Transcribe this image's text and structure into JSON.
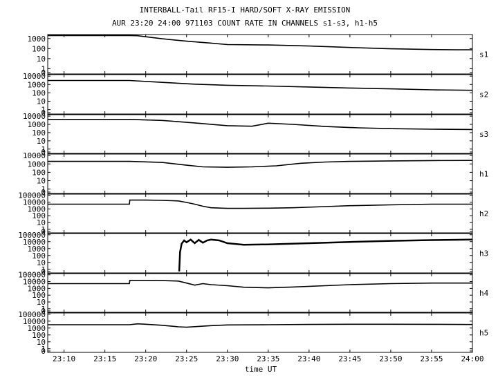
{
  "header": {
    "title": "INTERBALL-Tail RF15-I HARD/SOFT X-RAY EMISSION",
    "subtitle": "AUR 23:20 24:00 971103  COUNT RATE IN CHANNELS s1-s3, h1-h5"
  },
  "chart_data": {
    "type": "line",
    "xlabel": "time UT",
    "x_ticks": [
      "23:10",
      "23:15",
      "23:20",
      "23:25",
      "23:30",
      "23:35",
      "23:40",
      "23:45",
      "23:50",
      "23:55",
      "24:00"
    ],
    "x_tick_values": [
      10,
      15,
      20,
      25,
      30,
      35,
      40,
      45,
      50,
      55,
      60
    ],
    "xlim": [
      8,
      60
    ],
    "yscale": "log",
    "panels": [
      {
        "name": "s1",
        "ytick_labels": [
          "1000",
          "100",
          "10",
          "1",
          "0"
        ],
        "ytick_values": [
          1000,
          100,
          10,
          1,
          0
        ],
        "ylim": [
          0.3,
          2500
        ],
        "x": [
          8,
          18,
          19,
          20,
          22,
          25,
          28,
          30,
          35,
          40,
          45,
          50,
          55,
          58,
          60
        ],
        "y": [
          2000,
          2000,
          1900,
          1500,
          950,
          550,
          350,
          250,
          230,
          180,
          130,
          95,
          80,
          75,
          75
        ]
      },
      {
        "name": "s2",
        "ytick_labels": [
          "10000",
          "1000",
          "100",
          "10",
          "1",
          "0"
        ],
        "ytick_values": [
          10000,
          1000,
          100,
          10,
          1,
          0
        ],
        "ylim": [
          0.3,
          15000
        ],
        "x": [
          8,
          18,
          22,
          26,
          30,
          35,
          40,
          45,
          50,
          55,
          60
        ],
        "y": [
          3000,
          3000,
          1800,
          1100,
          800,
          650,
          500,
          380,
          300,
          230,
          200
        ]
      },
      {
        "name": "s3",
        "ytick_labels": [
          "10000",
          "1000",
          "100",
          "10",
          "1",
          "0"
        ],
        "ytick_values": [
          10000,
          1000,
          100,
          10,
          1,
          0
        ],
        "ylim": [
          0.3,
          15000
        ],
        "x": [
          8,
          18,
          22,
          26,
          30,
          33,
          35,
          38,
          42,
          46,
          50,
          55,
          60
        ],
        "y": [
          4000,
          4000,
          3000,
          1500,
          700,
          600,
          1400,
          1000,
          550,
          380,
          300,
          260,
          240
        ]
      },
      {
        "name": "h1",
        "ytick_labels": [
          "10000",
          "1000",
          "100",
          "10",
          "1",
          "0"
        ],
        "ytick_values": [
          10000,
          1000,
          100,
          10,
          1,
          0
        ],
        "ylim": [
          0.3,
          15000
        ],
        "x": [
          8,
          18,
          22,
          25,
          27,
          30,
          33,
          36,
          39,
          42,
          45,
          50,
          55,
          60
        ],
        "y": [
          2000,
          2000,
          1500,
          700,
          450,
          400,
          450,
          600,
          1200,
          1700,
          2000,
          2300,
          2500,
          2600
        ]
      },
      {
        "name": "h2",
        "ytick_labels": [
          "100000",
          "10000",
          "1000",
          "100",
          "10",
          "1",
          "0"
        ],
        "ytick_values": [
          100000,
          10000,
          1000,
          100,
          10,
          1,
          0
        ],
        "ylim": [
          0.3,
          150000
        ],
        "x": [
          8,
          18,
          18.05,
          20,
          22,
          24,
          25,
          26,
          27,
          28,
          30,
          32,
          35,
          38,
          42,
          45,
          50,
          55,
          60
        ],
        "y": [
          5000,
          5000,
          20000,
          20000,
          18000,
          15000,
          9000,
          5000,
          2500,
          1500,
          1200,
          1200,
          1300,
          1500,
          2200,
          3000,
          4000,
          5000,
          5000
        ]
      },
      {
        "name": "h3",
        "ytick_labels": [
          "100000",
          "10000",
          "1000",
          "100",
          "10",
          "1",
          "0"
        ],
        "ytick_values": [
          100000,
          10000,
          1000,
          100,
          10,
          1,
          0
        ],
        "ylim": [
          0.3,
          150000
        ],
        "x": [
          24.1,
          24.2,
          24.4,
          24.7,
          25,
          25.5,
          26,
          26.5,
          27,
          27.5,
          28,
          29,
          30,
          32,
          35,
          40,
          45,
          50,
          55,
          60
        ],
        "y": [
          0.5,
          300,
          5000,
          15000,
          8000,
          20000,
          6000,
          18000,
          7000,
          15000,
          20000,
          15000,
          6000,
          3500,
          4000,
          6000,
          9000,
          13000,
          17000,
          20000
        ]
      },
      {
        "name": "h4",
        "ytick_labels": [
          "100000",
          "10000",
          "1000",
          "100",
          "10",
          "1",
          "0"
        ],
        "ytick_values": [
          100000,
          10000,
          1000,
          100,
          10,
          1,
          0
        ],
        "ylim": [
          0.3,
          150000
        ],
        "x": [
          8,
          18,
          18.05,
          20,
          22,
          24,
          25,
          26,
          27,
          28,
          30,
          32,
          35,
          38,
          42,
          45,
          50,
          55,
          60
        ],
        "y": [
          5000,
          5000,
          15000,
          15000,
          14000,
          12000,
          6000,
          3000,
          5000,
          3500,
          2500,
          1500,
          1200,
          1600,
          2500,
          3500,
          5000,
          6000,
          6000
        ]
      },
      {
        "name": "h5",
        "ytick_labels": [
          "100000",
          "10000",
          "1000",
          "100",
          "10",
          "1",
          "0"
        ],
        "ytick_values": [
          100000,
          10000,
          1000,
          100,
          10,
          1,
          0
        ],
        "ylim": [
          0.3,
          150000
        ],
        "x": [
          8,
          18,
          19,
          20,
          22,
          24,
          25,
          28,
          30,
          35,
          40,
          45,
          50,
          55,
          60
        ],
        "y": [
          3000,
          3000,
          4000,
          3500,
          2500,
          1500,
          1300,
          2200,
          2800,
          3000,
          3300,
          3500,
          3500,
          3400,
          3200
        ]
      }
    ]
  }
}
